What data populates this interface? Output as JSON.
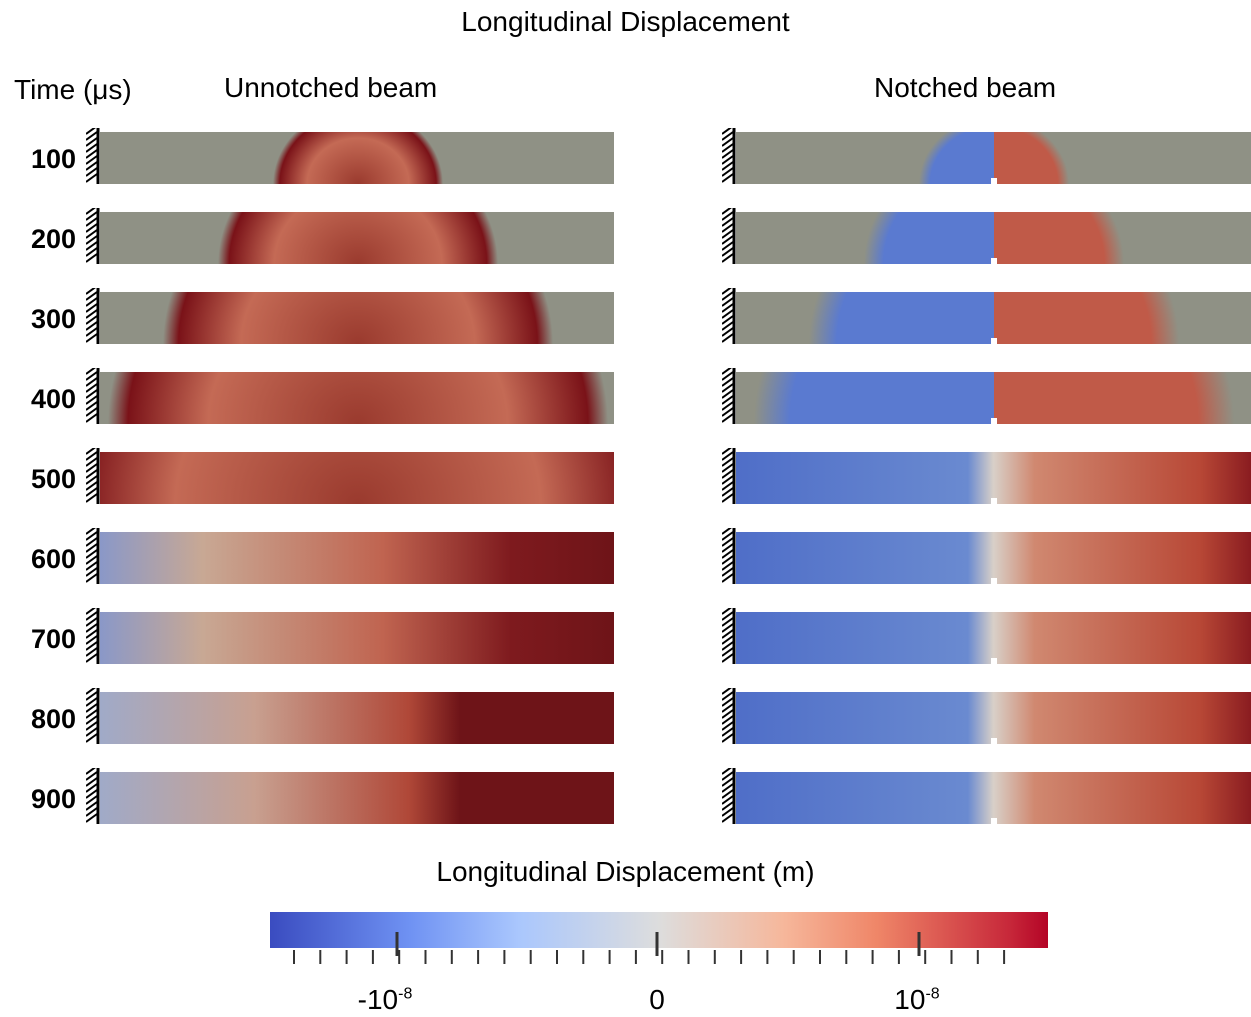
{
  "title": "Longitudinal Displacement",
  "time_label": "Time (μs)",
  "left_heading": "Unnotched beam",
  "right_heading": "Notched beam",
  "times": [
    "100",
    "200",
    "300",
    "400",
    "500",
    "600",
    "700",
    "800",
    "900"
  ],
  "colorbar": {
    "title": "Longitudinal Displacement (m)",
    "tick_labels": {
      "neg": "-10",
      "neg_exp": "-8",
      "zero": "0",
      "pos": "10",
      "pos_exp": "-8"
    },
    "colors": {
      "low": "#3a4cc0",
      "mid": "#dddddd",
      "high": "#b40426"
    }
  },
  "colors": {
    "background_field": "#8f9185",
    "wave_dark": "#7a1218",
    "wave_red": "#c0604f",
    "wave_blue": "#4466c8"
  }
}
